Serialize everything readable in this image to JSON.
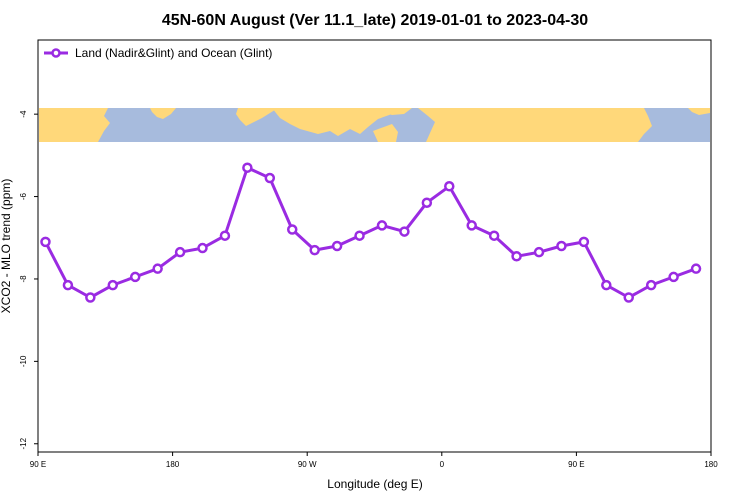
{
  "chart_data": {
    "type": "line",
    "title": "45N-60N August (Ver 11.1_late)   2019-01-01 to 2023-04-30",
    "xlabel": "Longitude (deg E)",
    "ylabel": "XCO2 - MLO trend (ppm)",
    "ylim": [
      -12.2,
      -2.2
    ],
    "y_ticks": [
      -4,
      -6,
      -8,
      -10,
      -12
    ],
    "x_ticks": [
      "90 E",
      "180",
      "90 W",
      "0",
      "90 E",
      "180"
    ],
    "legend": {
      "placement": "top-left",
      "entries": [
        "Land (Nadir&Glint) and Ocean (Glint)"
      ]
    },
    "series_color": "#9a2be2",
    "map_strip": {
      "lat_range": "45N-60N",
      "land_color": "#ffd87a",
      "ocean_color": "#a7bbdd"
    },
    "series": [
      {
        "name": "Land (Nadir&Glint) and Ocean (Glint)",
        "x": [
          95,
          110,
          125,
          140,
          155,
          170,
          185,
          200,
          215,
          230,
          245,
          260,
          275,
          290,
          305,
          320,
          335,
          350,
          365,
          380,
          395,
          410,
          425,
          440,
          455,
          470,
          485,
          500,
          515,
          530
        ],
        "values": [
          -7.1,
          -8.15,
          -8.45,
          -8.15,
          -7.95,
          -7.75,
          -7.35,
          -7.25,
          -6.95,
          -5.3,
          -5.55,
          -6.8,
          -7.3,
          -7.2,
          -6.95,
          -6.7,
          -6.85,
          -6.15,
          -5.75,
          -6.7,
          -6.95,
          -7.45,
          -7.35,
          -7.2,
          -7.1,
          -8.15,
          -8.45,
          -8.15,
          -7.95,
          -7.75
        ]
      }
    ]
  }
}
